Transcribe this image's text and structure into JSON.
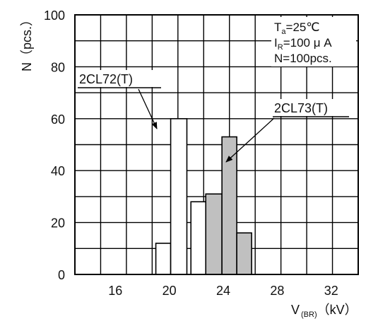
{
  "chart_data": {
    "type": "bar",
    "ylabel": "N（pcs.）",
    "xlabel_main": "V",
    "xlabel_sub": "(BR)",
    "xlabel_unit": "（kV）",
    "xlim": [
      13,
      34
    ],
    "ylim": [
      0,
      100
    ],
    "x_ticks": [
      16,
      20,
      24,
      28,
      32
    ],
    "y_ticks": [
      0,
      20,
      40,
      60,
      80,
      100
    ],
    "grid": true,
    "conditions": [
      {
        "main": "T",
        "sub": "a",
        "rest": "=25℃"
      },
      {
        "main": "I",
        "sub": "R",
        "rest": "=100 μ A"
      },
      {
        "main": "",
        "sub": "",
        "rest": "N=100pcs."
      }
    ],
    "series": [
      {
        "name": "2CL72(T)",
        "color": "#ffffff",
        "bars": [
          {
            "x0": 19.0,
            "x1": 20.1,
            "value": 12
          },
          {
            "x0": 20.1,
            "x1": 21.3,
            "value": 60
          },
          {
            "x0": 21.6,
            "x1": 22.8,
            "value": 28
          }
        ]
      },
      {
        "name": "2CL73(T)",
        "color": "#c0c0c0",
        "bars": [
          {
            "x0": 22.7,
            "x1": 23.9,
            "value": 31
          },
          {
            "x0": 23.9,
            "x1": 25.0,
            "value": 53
          },
          {
            "x0": 25.0,
            "x1": 26.1,
            "value": 16
          }
        ]
      }
    ]
  }
}
